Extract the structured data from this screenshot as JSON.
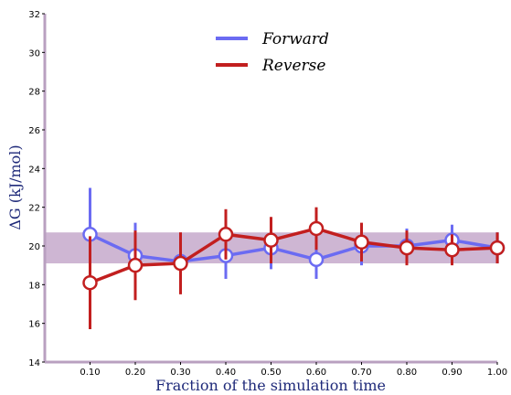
{
  "chart_data": {
    "type": "line",
    "title": "",
    "xlabel": "Fraction of the simulation time",
    "ylabel": "ΔG (kJ/mol)",
    "xlim": [
      0.0,
      1.0
    ],
    "ylim": [
      14,
      32
    ],
    "x_ticks": [
      "0.10",
      "0.20",
      "0.30",
      "0.40",
      "0.50",
      "0.60",
      "0.70",
      "0.80",
      "0.90",
      "1.00"
    ],
    "y_ticks": [
      14,
      16,
      18,
      20,
      22,
      24,
      26,
      28,
      30,
      32
    ],
    "x": [
      0.1,
      0.2,
      0.3,
      0.4,
      0.5,
      0.6,
      0.7,
      0.8,
      0.9,
      1.0
    ],
    "band": {
      "lower": 19.1,
      "upper": 20.7,
      "color": "#b48fbb"
    },
    "legend_position": "top-center",
    "grid": false,
    "series": [
      {
        "name": "Forward",
        "color": "#6b6bf2",
        "values": [
          20.6,
          19.5,
          19.2,
          19.5,
          19.9,
          19.3,
          20.0,
          20.0,
          20.3,
          19.9
        ],
        "errors": [
          2.4,
          1.7,
          0.3,
          1.2,
          1.1,
          1.0,
          1.0,
          0.9,
          0.8,
          0.8
        ]
      },
      {
        "name": "Reverse",
        "color": "#c21f1f",
        "values": [
          18.1,
          19.0,
          19.1,
          20.6,
          20.3,
          20.9,
          20.2,
          19.9,
          19.8,
          19.9
        ],
        "errors": [
          2.4,
          1.8,
          1.6,
          1.3,
          1.2,
          1.1,
          1.0,
          0.9,
          0.8,
          0.8
        ]
      }
    ]
  }
}
